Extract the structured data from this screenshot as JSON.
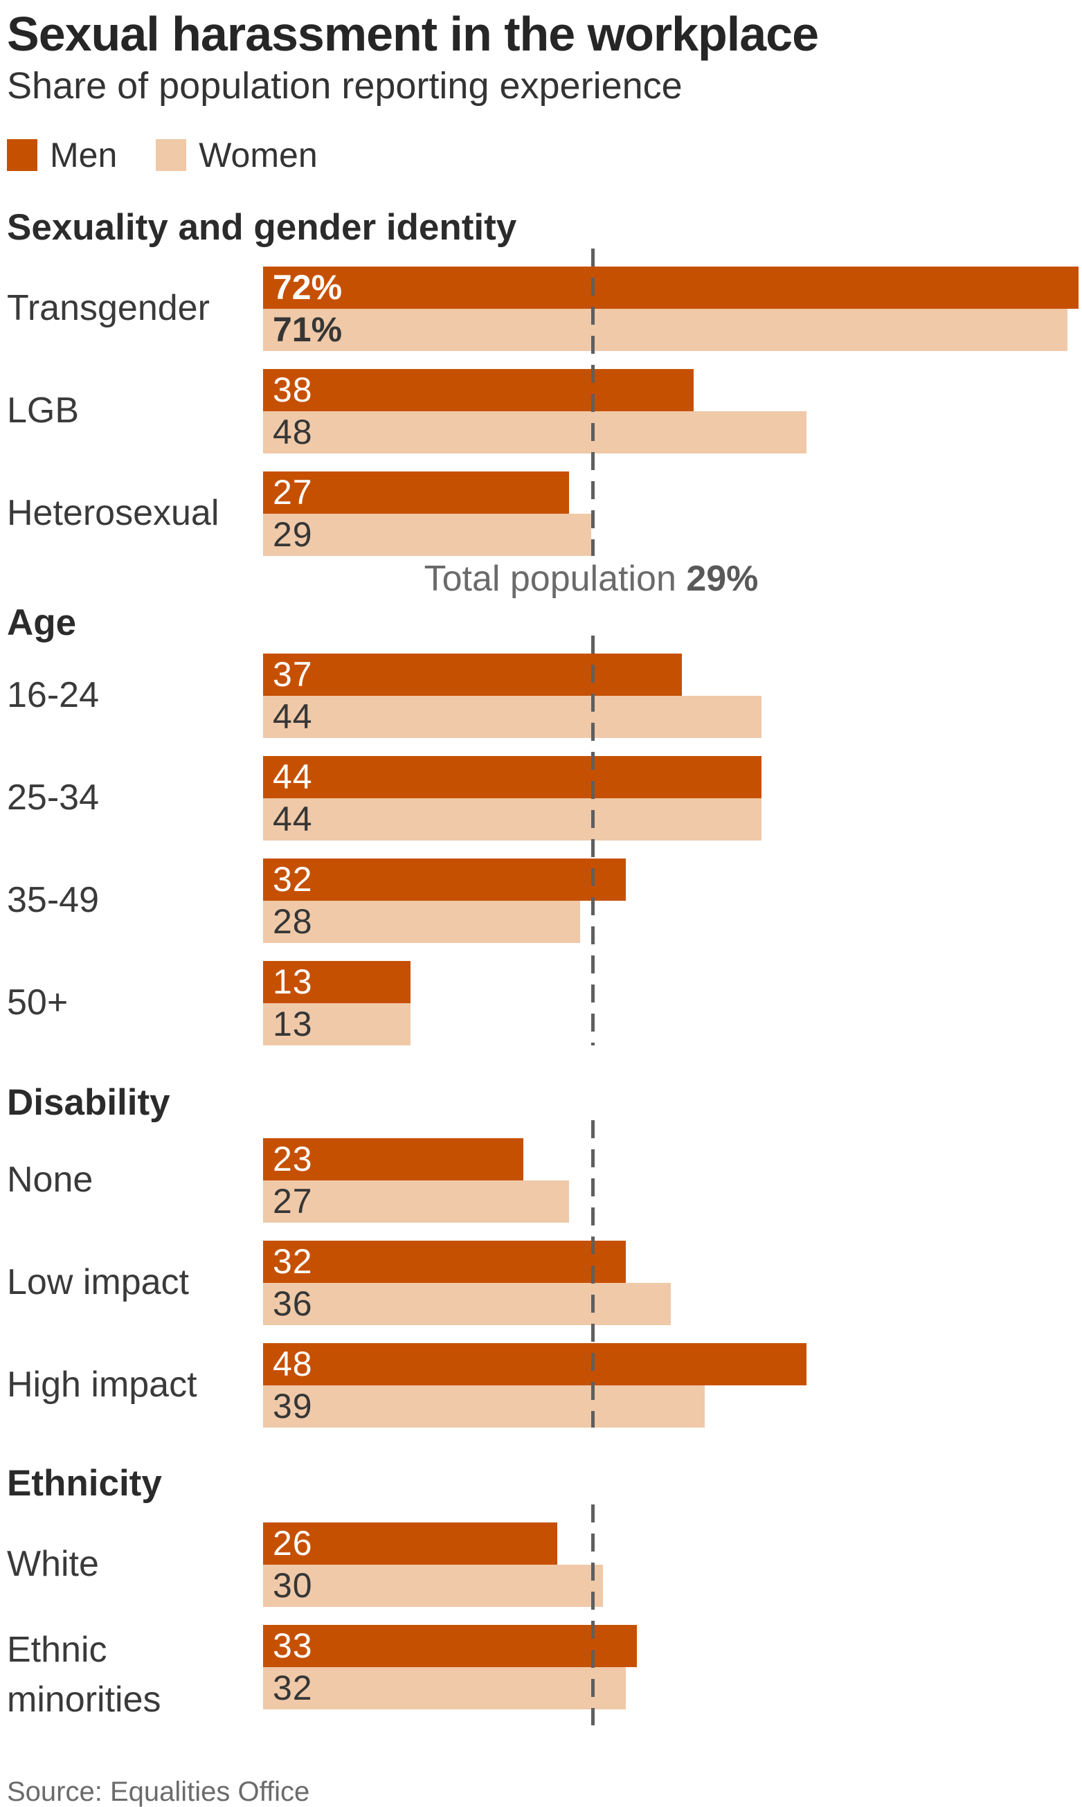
{
  "page": {
    "title": "Sexual harassment in the workplace",
    "subtitle": "Share of population reporting experience",
    "source": "Source: Equalities Office"
  },
  "legend": {
    "items": [
      {
        "label": "Men",
        "color": "#c65002"
      },
      {
        "label": "Women",
        "color": "#f0c9a8"
      }
    ]
  },
  "annotation": {
    "prefix": "Total population ",
    "value_label": "29%"
  },
  "colors": {
    "men_bar": "#c65002",
    "women_bar": "#f0c9a8",
    "reference_line": "#5f5f5f",
    "title_text": "#262626",
    "body_text": "#3a3a3a",
    "muted_text": "#6a6a6a"
  },
  "chart_data": {
    "type": "bar",
    "orientation": "horizontal",
    "unit": "percent",
    "xlim": [
      0,
      72
    ],
    "grid": false,
    "legend_position": "top",
    "series_names": [
      "Men",
      "Women"
    ],
    "reference_line": {
      "label": "Total population",
      "value": 29,
      "display": "29%"
    },
    "groups": [
      {
        "header": "Sexuality and gender identity",
        "rows": [
          {
            "label": "Transgender",
            "men": 72,
            "women": 71,
            "men_display": "72%",
            "women_display": "71%",
            "emphasis": true
          },
          {
            "label": "LGB",
            "men": 38,
            "women": 48,
            "men_display": "38",
            "women_display": "48",
            "emphasis": false
          },
          {
            "label": "Heterosexual",
            "men": 27,
            "women": 29,
            "men_display": "27",
            "women_display": "29",
            "emphasis": false
          }
        ]
      },
      {
        "header": "Age",
        "rows": [
          {
            "label": "16-24",
            "men": 37,
            "women": 44,
            "men_display": "37",
            "women_display": "44",
            "emphasis": false
          },
          {
            "label": "25-34",
            "men": 44,
            "women": 44,
            "men_display": "44",
            "women_display": "44",
            "emphasis": false
          },
          {
            "label": "35-49",
            "men": 32,
            "women": 28,
            "men_display": "32",
            "women_display": "28",
            "emphasis": false
          },
          {
            "label": "50+",
            "men": 13,
            "women": 13,
            "men_display": "13",
            "women_display": "13",
            "emphasis": false
          }
        ]
      },
      {
        "header": "Disability",
        "rows": [
          {
            "label": "None",
            "men": 23,
            "women": 27,
            "men_display": "23",
            "women_display": "27",
            "emphasis": false
          },
          {
            "label": "Low impact",
            "men": 32,
            "women": 36,
            "men_display": "32",
            "women_display": "36",
            "emphasis": false
          },
          {
            "label": "High impact",
            "men": 48,
            "women": 39,
            "men_display": "48",
            "women_display": "39",
            "emphasis": false
          }
        ]
      },
      {
        "header": "Ethnicity",
        "rows": [
          {
            "label": "White",
            "men": 26,
            "women": 30,
            "men_display": "26",
            "women_display": "30",
            "emphasis": false
          },
          {
            "label": "Ethnic minorities",
            "men": 33,
            "women": 32,
            "men_display": "33",
            "women_display": "32",
            "emphasis": false
          }
        ]
      }
    ]
  }
}
